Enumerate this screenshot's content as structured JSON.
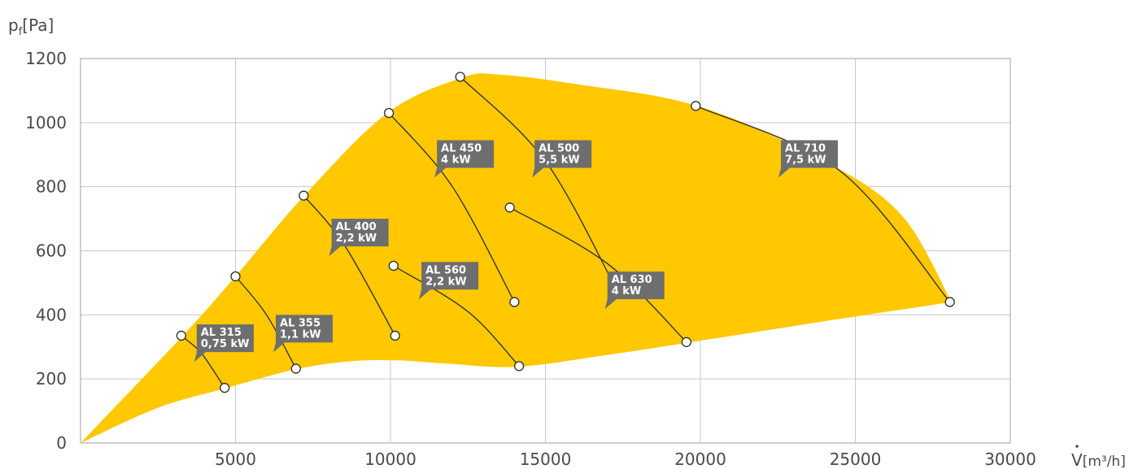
{
  "chart_data": {
    "type": "line",
    "ylabel_main": "p",
    "ylabel_sub": "f",
    "ylabel_unit": "[Pa]",
    "xlabel_symbol": "V",
    "xlabel_unit": "[m³/h]",
    "xlim": [
      0,
      30000
    ],
    "ylim": [
      0,
      1200
    ],
    "x_ticks": [
      5000,
      10000,
      15000,
      20000,
      25000,
      30000
    ],
    "x_tick_labels": [
      "5000",
      "10000",
      "15000",
      "20000",
      "25000",
      "30000"
    ],
    "y_ticks": [
      0,
      200,
      400,
      600,
      800,
      1000,
      1200
    ],
    "y_tick_labels": [
      "0",
      "200",
      "400",
      "600",
      "800",
      "1000",
      "1200"
    ],
    "grid": true,
    "area_color": "#FFC800",
    "envelope": {
      "upper": [
        [
          0,
          0
        ],
        [
          3300,
          335
        ],
        [
          5000,
          520
        ],
        [
          7200,
          770
        ],
        [
          9900,
          1030
        ],
        [
          12300,
          1140
        ],
        [
          13500,
          1150
        ],
        [
          16000,
          1120
        ],
        [
          19900,
          1052
        ],
        [
          24000,
          880
        ],
        [
          26500,
          710
        ],
        [
          28100,
          440
        ]
      ],
      "lower": [
        [
          0,
          0
        ],
        [
          2500,
          110
        ],
        [
          4650,
          170
        ],
        [
          6950,
          230
        ],
        [
          8700,
          255
        ],
        [
          10200,
          258
        ],
        [
          11800,
          248
        ],
        [
          14100,
          238
        ],
        [
          17000,
          275
        ],
        [
          19600,
          313
        ],
        [
          24000,
          380
        ],
        [
          28100,
          440
        ]
      ]
    },
    "series": [
      {
        "labels": [
          "AL 315",
          "0,75 kW"
        ],
        "points": [
          [
            3250,
            335
          ],
          [
            3900,
            280
          ],
          [
            4650,
            172
          ]
        ],
        "label_at": [
          3750,
          370
        ]
      },
      {
        "labels": [
          "AL 355",
          "1,1 kW"
        ],
        "points": [
          [
            5000,
            520
          ],
          [
            6000,
            400
          ],
          [
            6950,
            232
          ]
        ],
        "label_at": [
          6300,
          400
        ]
      },
      {
        "labels": [
          "AL 400",
          "2,2 kW"
        ],
        "points": [
          [
            7200,
            772
          ],
          [
            8500,
            620
          ],
          [
            10150,
            335
          ]
        ],
        "label_at": [
          8100,
          700
        ]
      },
      {
        "labels": [
          "AL 450",
          "4 kW"
        ],
        "points": [
          [
            9950,
            1030
          ],
          [
            12000,
            800
          ],
          [
            14000,
            440
          ]
        ],
        "label_at": [
          11500,
          945
        ]
      },
      {
        "labels": [
          "AL 500",
          "5,5 kW"
        ],
        "points": [
          [
            12250,
            1143
          ],
          [
            15000,
            880
          ],
          [
            17300,
            478
          ]
        ],
        "label_at": [
          14650,
          945
        ]
      },
      {
        "labels": [
          "AL 560",
          "2,2 kW"
        ],
        "points": [
          [
            10100,
            553
          ],
          [
            12500,
            410
          ],
          [
            14150,
            240
          ]
        ],
        "label_at": [
          11000,
          565
        ]
      },
      {
        "labels": [
          "AL 630",
          "4 kW"
        ],
        "points": [
          [
            13850,
            735
          ],
          [
            17000,
            560
          ],
          [
            19550,
            315
          ]
        ],
        "label_at": [
          17000,
          535
        ]
      },
      {
        "labels": [
          "AL 710",
          "7,5 kW"
        ],
        "points": [
          [
            19850,
            1052
          ],
          [
            24500,
            850
          ],
          [
            28050,
            440
          ]
        ],
        "label_at": [
          22600,
          945
        ]
      }
    ]
  }
}
